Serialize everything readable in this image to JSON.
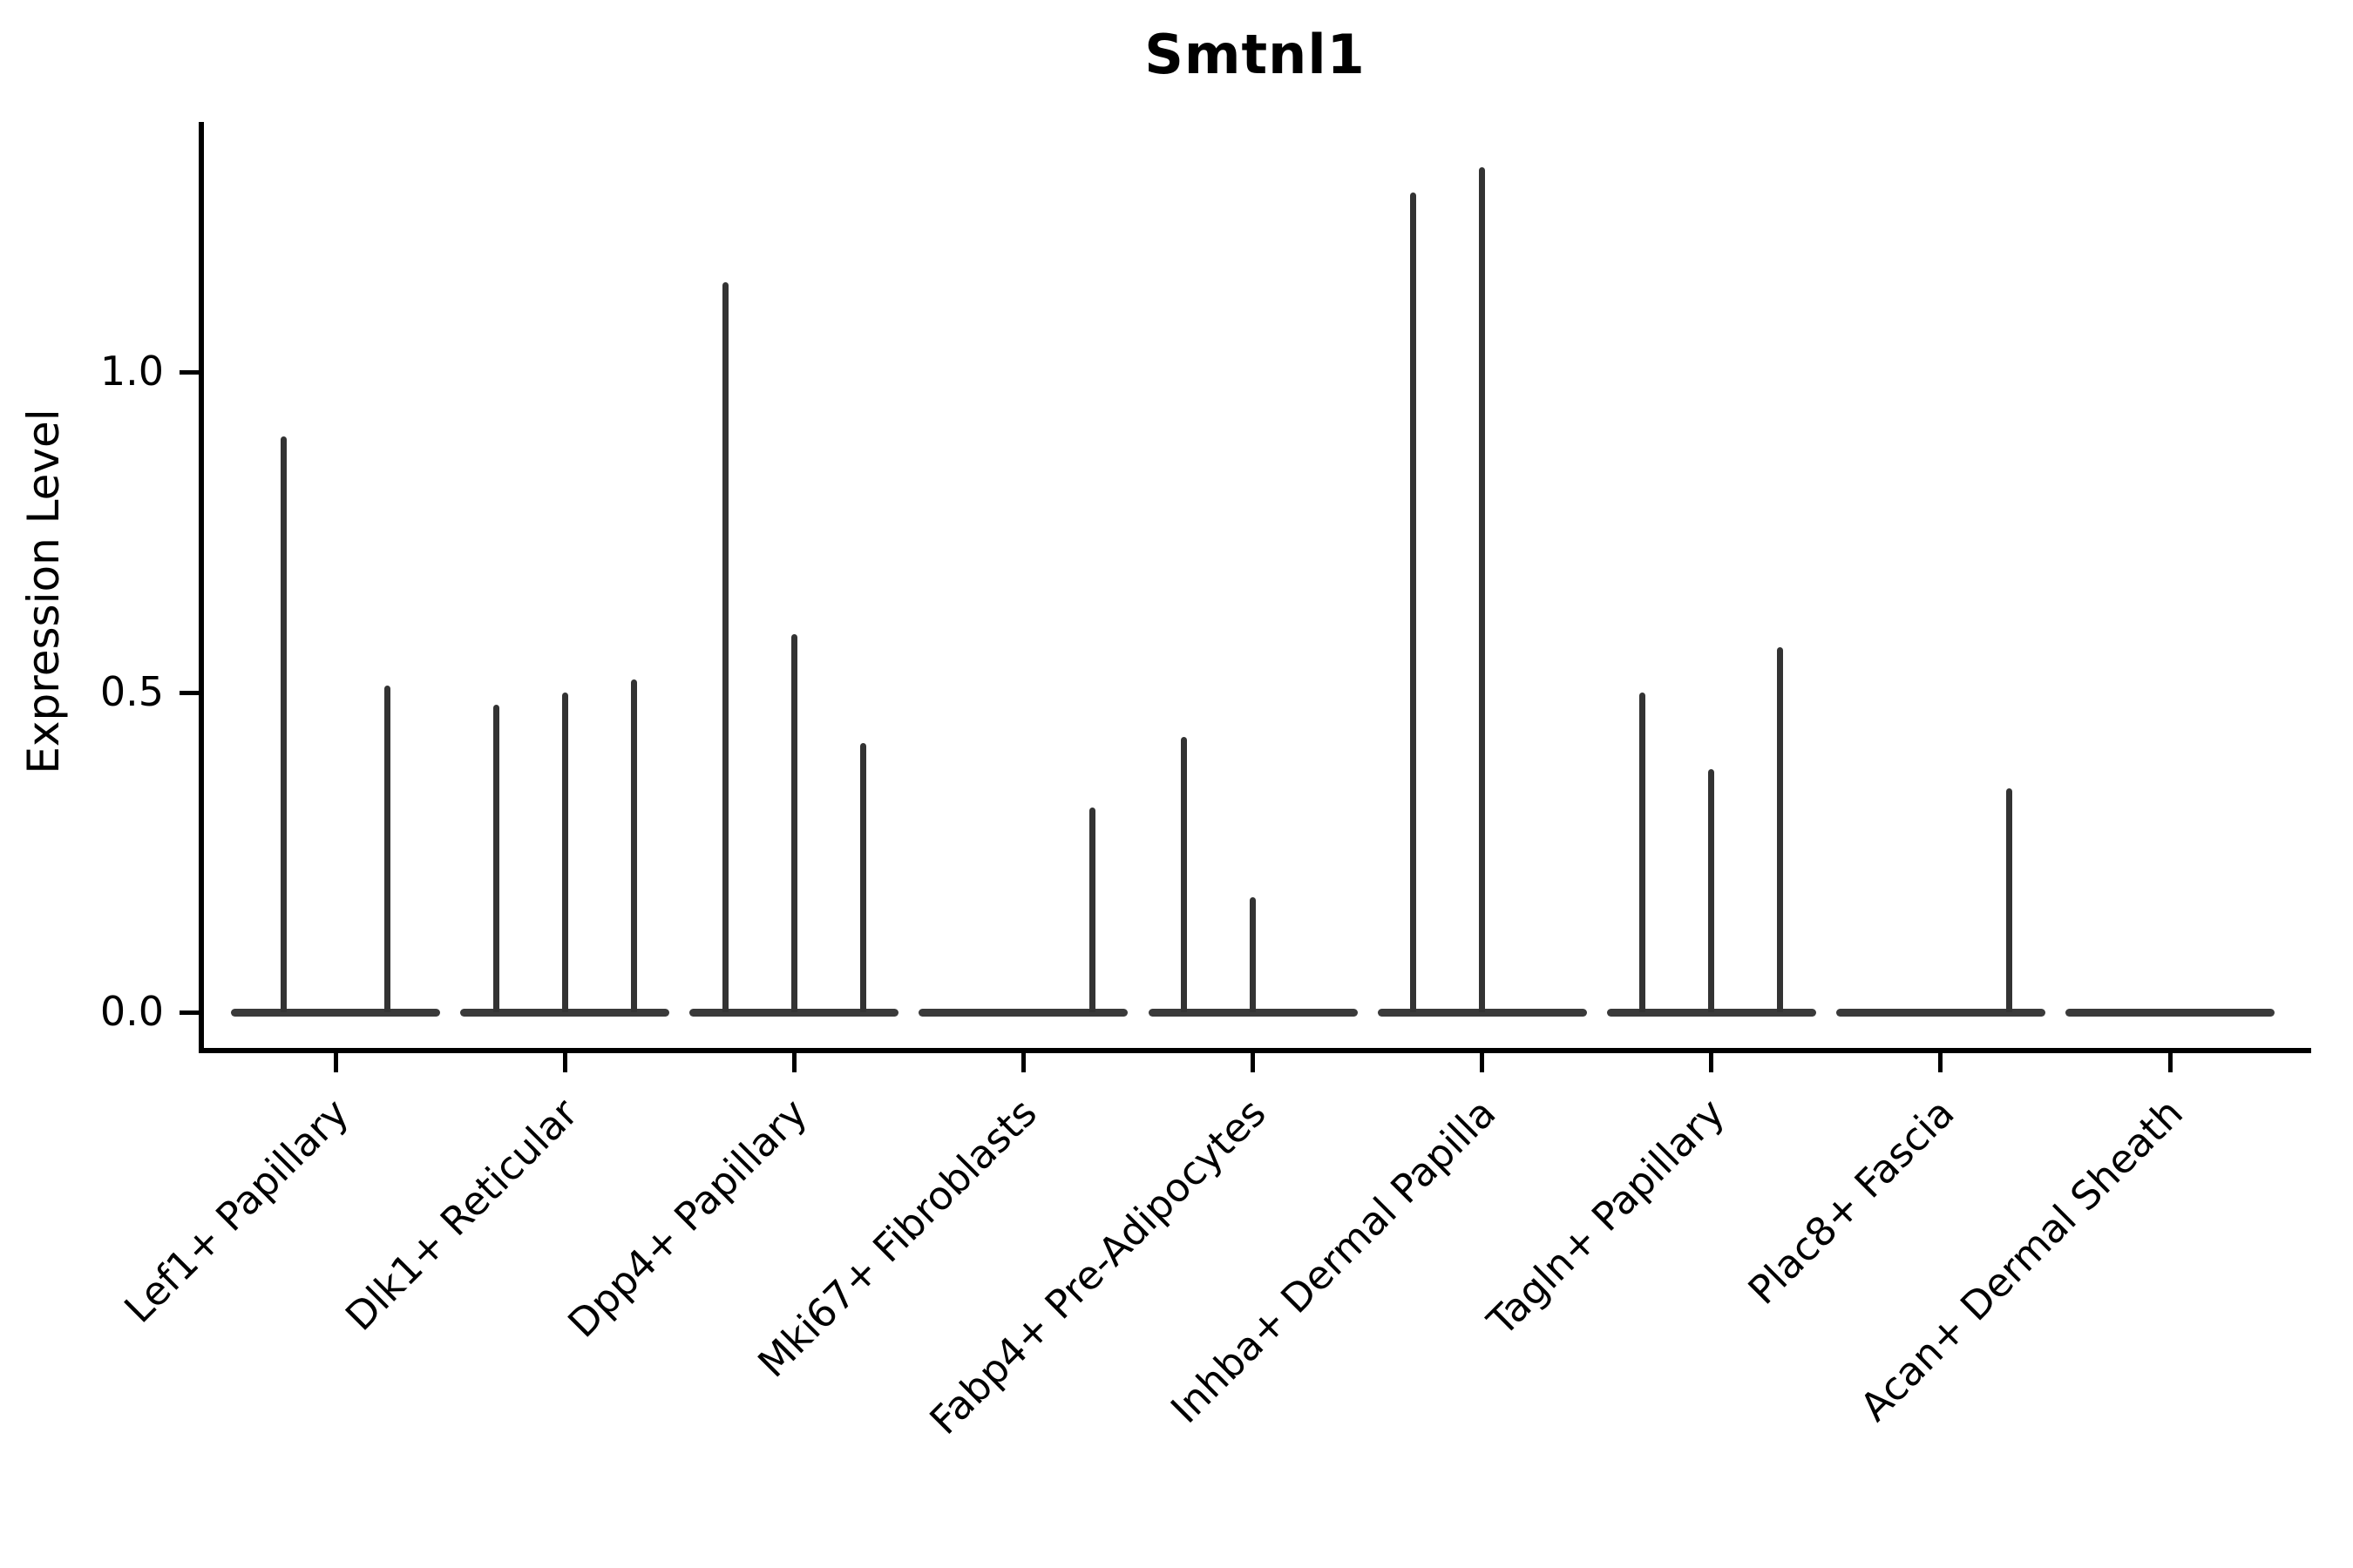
{
  "chart_data": {
    "type": "violin",
    "title": "Smtnl1",
    "ylabel": "Expression Level",
    "yticks": [
      0.0,
      0.5,
      1.0
    ],
    "ylim": [
      -0.06,
      1.39
    ],
    "grid": false,
    "legend": "none",
    "x_tick_rotation_deg": 45,
    "categories": [
      "Lef1+ Papillary",
      "Dlk1+ Reticular",
      "Dpp4+ Papillary",
      "Mki67+ Fibroblasts",
      "Fabp4+ Pre-Adipocytes",
      "Inhba+ Dermal Papilla",
      "Tagln+ Papillary",
      "Plac8+ Fascia",
      "Acan+ Dermal Sheath"
    ],
    "groups": [
      {
        "category": "Lef1+ Papillary",
        "violins": [
          {
            "offset": -0.225,
            "peak": 0.9
          },
          {
            "offset": 0.225,
            "peak": 0.51
          }
        ]
      },
      {
        "category": "Dlk1+ Reticular",
        "violins": [
          {
            "offset": -0.3,
            "peak": 0.48
          },
          {
            "offset": 0,
            "peak": 0.5
          },
          {
            "offset": 0.3,
            "peak": 0.52
          }
        ]
      },
      {
        "category": "Dpp4+ Papillary",
        "violins": [
          {
            "offset": -0.3,
            "peak": 1.14
          },
          {
            "offset": 0,
            "peak": 0.59
          },
          {
            "offset": 0.3,
            "peak": 0.42
          }
        ]
      },
      {
        "category": "Mki67+ Fibroblasts",
        "violins": [
          {
            "offset": 0.3,
            "peak": 0.32
          }
        ]
      },
      {
        "category": "Fabp4+ Pre-Adipocytes",
        "violins": [
          {
            "offset": -0.3,
            "peak": 0.43
          },
          {
            "offset": 0,
            "peak": 0.18
          }
        ]
      },
      {
        "category": "Inhba+ Dermal Papilla",
        "violins": [
          {
            "offset": -0.3,
            "peak": 1.28
          },
          {
            "offset": 0,
            "peak": 1.32
          }
        ]
      },
      {
        "category": "Tagln+ Papillary",
        "violins": [
          {
            "offset": -0.3,
            "peak": 0.5
          },
          {
            "offset": 0,
            "peak": 0.38
          },
          {
            "offset": 0.3,
            "peak": 0.57
          }
        ]
      },
      {
        "category": "Plac8+ Fascia",
        "violins": [
          {
            "offset": 0.3,
            "peak": 0.35
          }
        ]
      },
      {
        "category": "Acan+ Dermal Sheath",
        "violins": []
      }
    ],
    "colors": {
      "spike": "#333333",
      "base_bar": "#3a3a3a",
      "axis": "#000000",
      "text": "#000000",
      "background": "#ffffff"
    }
  }
}
